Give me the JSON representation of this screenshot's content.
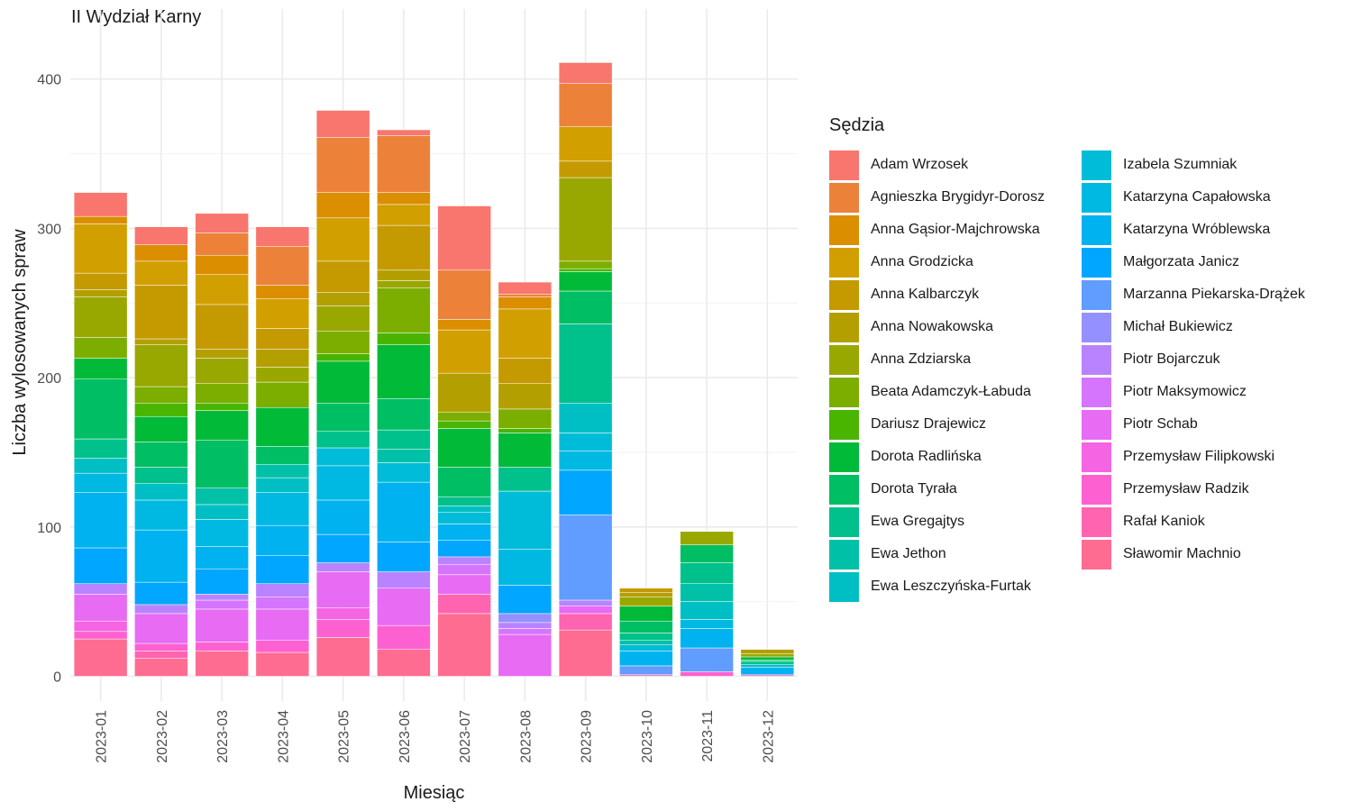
{
  "chart_data": {
    "type": "bar",
    "stacked": true,
    "title": "II Wydział Karny",
    "xlabel": "Miesiąc",
    "ylabel": "Liczba wylosowanych spraw",
    "legend_title": "Sędzia",
    "legend_position": "right",
    "grid": true,
    "ylim": [
      0,
      440
    ],
    "yticks": [
      0,
      100,
      200,
      300,
      400
    ],
    "categories": [
      "2023-01",
      "2023-02",
      "2023-03",
      "2023-04",
      "2023-05",
      "2023-06",
      "2023-07",
      "2023-08",
      "2023-09",
      "2023-10",
      "2023-11",
      "2023-12"
    ],
    "series": [
      {
        "name": "Adam Wrzosek",
        "color": "#F8766D",
        "values": [
          16,
          12,
          13,
          13,
          18,
          4,
          43,
          8,
          14,
          0,
          0,
          0
        ]
      },
      {
        "name": "Agnieszka Brygidyr-Dorosz",
        "color": "#EC8239",
        "values": [
          0,
          0,
          15,
          26,
          37,
          38,
          33,
          2,
          29,
          0,
          0,
          0
        ]
      },
      {
        "name": "Anna Gąsior-Majchrowska",
        "color": "#DB8E00",
        "values": [
          5,
          11,
          13,
          9,
          17,
          8,
          7,
          8,
          0,
          0,
          0,
          0
        ]
      },
      {
        "name": "Anna Grodzicka",
        "color": "#D29F00",
        "values": [
          33,
          16,
          20,
          20,
          29,
          14,
          29,
          33,
          23,
          0,
          0,
          0
        ]
      },
      {
        "name": "Anna Kalbarczyk",
        "color": "#C49A00",
        "values": [
          11,
          36,
          30,
          14,
          21,
          30,
          0,
          17,
          11,
          3,
          0,
          0
        ]
      },
      {
        "name": "Anna Nowakowska",
        "color": "#B3A000",
        "values": [
          5,
          4,
          6,
          12,
          9,
          7,
          26,
          17,
          0,
          3,
          0,
          3
        ]
      },
      {
        "name": "Anna Zdziarska",
        "color": "#99A800",
        "values": [
          27,
          28,
          17,
          10,
          17,
          5,
          0,
          0,
          56,
          6,
          9,
          2
        ]
      },
      {
        "name": "Beata Adamczyk-Łabuda",
        "color": "#7CAE00",
        "values": [
          14,
          11,
          13,
          17,
          15,
          30,
          6,
          13,
          5,
          0,
          0,
          0
        ]
      },
      {
        "name": "Dariusz Drajewicz",
        "color": "#49B500",
        "values": [
          0,
          9,
          5,
          0,
          5,
          8,
          5,
          3,
          2,
          0,
          0,
          0
        ]
      },
      {
        "name": "Dorota Radlińska",
        "color": "#00BA38",
        "values": [
          14,
          17,
          20,
          26,
          28,
          36,
          26,
          23,
          13,
          10,
          0,
          2
        ]
      },
      {
        "name": "Dorota Tyrała",
        "color": "#00BE63",
        "values": [
          40,
          17,
          32,
          12,
          19,
          21,
          20,
          0,
          22,
          8,
          12,
          1
        ]
      },
      {
        "name": "Ewa Gregajtys",
        "color": "#00C08B",
        "values": [
          13,
          11,
          0,
          0,
          11,
          13,
          6,
          16,
          53,
          5,
          14,
          2
        ]
      },
      {
        "name": "Ewa Jethon",
        "color": "#00C1A7",
        "values": [
          0,
          0,
          11,
          9,
          0,
          9,
          0,
          0,
          0,
          3,
          12,
          0
        ]
      },
      {
        "name": "Ewa Leszczyńska-Furtak",
        "color": "#00BFC4",
        "values": [
          10,
          11,
          10,
          10,
          0,
          0,
          4,
          0,
          20,
          0,
          12,
          2
        ]
      },
      {
        "name": "Izabela Szumniak",
        "color": "#00BCD8",
        "values": [
          0,
          0,
          0,
          0,
          12,
          13,
          8,
          39,
          12,
          4,
          0,
          0
        ]
      },
      {
        "name": "Katarzyna Capałowska",
        "color": "#00B9E3",
        "values": [
          13,
          20,
          18,
          22,
          23,
          0,
          0,
          24,
          13,
          0,
          6,
          0
        ]
      },
      {
        "name": "Katarzyna Wróblewska",
        "color": "#00B2EF",
        "values": [
          37,
          35,
          15,
          20,
          23,
          40,
          11,
          0,
          0,
          10,
          13,
          5
        ]
      },
      {
        "name": "Małgorzata Janicz",
        "color": "#00A6FF",
        "values": [
          24,
          15,
          17,
          19,
          19,
          20,
          11,
          19,
          30,
          0,
          0,
          0
        ]
      },
      {
        "name": "Marzanna Piekarska-Drążek",
        "color": "#619CFF",
        "values": [
          0,
          0,
          0,
          0,
          0,
          0,
          0,
          0,
          57,
          6,
          16,
          0
        ]
      },
      {
        "name": "Michał Bukiewicz",
        "color": "#9590FF",
        "values": [
          0,
          0,
          0,
          0,
          0,
          0,
          0,
          6,
          0,
          0,
          0,
          0
        ]
      },
      {
        "name": "Piotr Bojarczuk",
        "color": "#B983FF",
        "values": [
          7,
          6,
          4,
          9,
          6,
          11,
          5,
          4,
          4,
          0,
          0,
          0
        ]
      },
      {
        "name": "Piotr Maksymowicz",
        "color": "#D575FE",
        "values": [
          0,
          0,
          6,
          8,
          0,
          0,
          7,
          4,
          0,
          0,
          0,
          0
        ]
      },
      {
        "name": "Piotr Schab",
        "color": "#E76BF3",
        "values": [
          18,
          20,
          22,
          21,
          24,
          25,
          13,
          28,
          5,
          0,
          0,
          0
        ]
      },
      {
        "name": "Przemysław Filipkowski",
        "color": "#F564E3",
        "values": [
          7,
          0,
          0,
          0,
          8,
          0,
          0,
          0,
          0,
          0,
          0,
          0
        ]
      },
      {
        "name": "Przemysław Radzik",
        "color": "#FD61D1",
        "values": [
          5,
          5,
          6,
          8,
          12,
          16,
          0,
          0,
          0,
          0,
          3,
          1
        ]
      },
      {
        "name": "Rafał Kaniok",
        "color": "#FF64B0",
        "values": [
          0,
          5,
          0,
          0,
          0,
          0,
          13,
          0,
          11,
          1,
          0,
          0
        ]
      },
      {
        "name": "Sławomir Machnio",
        "color": "#FF6C91",
        "values": [
          25,
          12,
          17,
          16,
          26,
          18,
          42,
          0,
          31,
          0,
          0,
          0
        ]
      }
    ]
  }
}
